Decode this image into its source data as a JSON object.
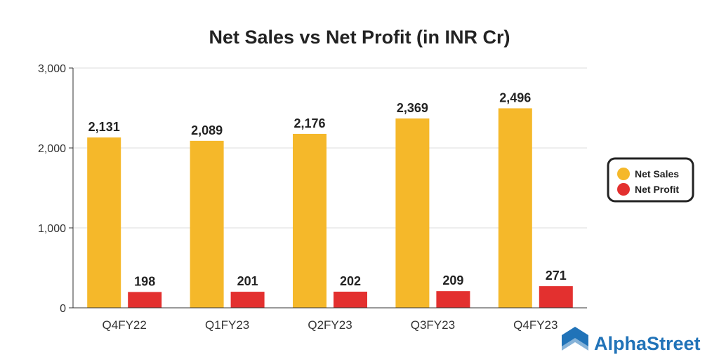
{
  "brand": {
    "name": "AlphaStreet",
    "color": "#2173b8",
    "icon": "alphastreet-logo-icon"
  },
  "chart_data": {
    "type": "bar",
    "title": "Net Sales vs Net Profit (in INR Cr)",
    "xlabel": "",
    "ylabel": "",
    "categories": [
      "Q4FY22",
      "Q1FY23",
      "Q2FY23",
      "Q3FY23",
      "Q4FY23"
    ],
    "series": [
      {
        "name": "Net Sales",
        "color": "#f5b82a",
        "values": [
          2131,
          2089,
          2176,
          2369,
          2496
        ],
        "labels": [
          "2,131",
          "2,089",
          "2,176",
          "2,369",
          "2,496"
        ]
      },
      {
        "name": "Net Profit",
        "color": "#e3302f",
        "values": [
          198,
          201,
          202,
          209,
          271
        ],
        "labels": [
          "198",
          "201",
          "202",
          "209",
          "271"
        ]
      }
    ],
    "ylim": [
      0,
      3000
    ],
    "yticks": [
      0,
      1000,
      2000,
      3000
    ],
    "ytick_labels": [
      "0",
      "1,000",
      "2,000",
      "3,000"
    ],
    "grid": true,
    "legend_position": "right"
  }
}
